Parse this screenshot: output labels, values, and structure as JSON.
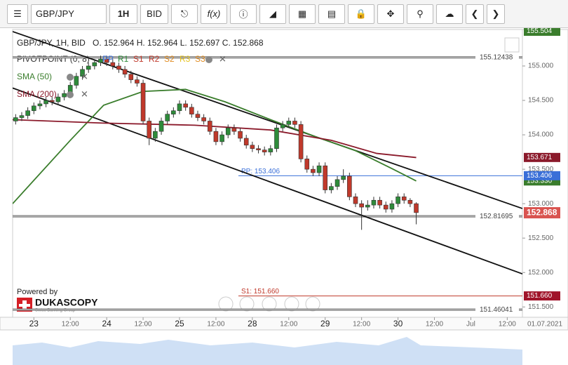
{
  "toolbar": {
    "symbol": "GBP/JPY",
    "timeframe": "1H",
    "side": "BID"
  },
  "chart_data": {
    "type": "candlestick",
    "title": "GBP/JPY, 1H, BID",
    "ohlc_summary": "O. 152.964 H. 152.964 L. 152.697 C. 152.868",
    "x": [
      1,
      3,
      5,
      7,
      9,
      11,
      13,
      15,
      17,
      19,
      21,
      23,
      25,
      27,
      29,
      31,
      33,
      35,
      37,
      39,
      41,
      43,
      45,
      47,
      49,
      51,
      53,
      55,
      57,
      59,
      61,
      63,
      65,
      67,
      69,
      71,
      73,
      75,
      77,
      79,
      81,
      83,
      85,
      87,
      89,
      91,
      93,
      95,
      97,
      99,
      101,
      103,
      105,
      107,
      109,
      111,
      113,
      115,
      117,
      119,
      121,
      123,
      125,
      127,
      129,
      131,
      133
    ],
    "open": [
      154.2,
      154.25,
      154.28,
      154.35,
      154.42,
      154.45,
      154.5,
      154.48,
      154.55,
      154.6,
      154.72,
      154.85,
      154.95,
      155.0,
      155.05,
      155.1,
      155.05,
      155.0,
      154.95,
      154.88,
      154.8,
      154.75,
      154.2,
      153.95,
      154.05,
      154.2,
      154.3,
      154.35,
      154.45,
      154.4,
      154.3,
      154.25,
      154.2,
      154.05,
      153.9,
      154.0,
      154.1,
      154.05,
      153.95,
      153.85,
      153.8,
      153.78,
      153.75,
      153.8,
      154.1,
      154.15,
      154.2,
      154.15,
      153.65,
      153.5,
      153.45,
      153.55,
      153.2,
      153.25,
      153.35,
      153.4,
      153.1,
      153.0,
      152.95,
      152.98,
      153.05,
      152.98,
      152.92,
      153.0,
      153.1,
      153.05,
      153.0
    ],
    "high": [
      154.3,
      154.33,
      154.4,
      154.47,
      154.5,
      154.55,
      154.55,
      154.6,
      154.65,
      154.77,
      154.9,
      155.0,
      155.05,
      155.1,
      155.15,
      155.15,
      155.1,
      155.05,
      155.0,
      154.93,
      154.85,
      154.8,
      154.25,
      154.1,
      154.25,
      154.35,
      154.4,
      154.5,
      154.5,
      154.45,
      154.35,
      154.3,
      154.25,
      154.1,
      154.05,
      154.15,
      154.15,
      154.1,
      154.0,
      153.9,
      153.85,
      153.83,
      153.85,
      154.15,
      154.2,
      154.25,
      154.25,
      154.2,
      153.7,
      153.55,
      153.6,
      153.6,
      153.3,
      153.4,
      153.5,
      153.45,
      153.15,
      153.05,
      153.05,
      153.1,
      153.1,
      153.03,
      153.05,
      153.15,
      153.15,
      153.08,
      153.02
    ],
    "low": [
      154.15,
      154.2,
      154.23,
      154.3,
      154.37,
      154.4,
      154.43,
      154.43,
      154.5,
      154.55,
      154.67,
      154.8,
      154.9,
      154.95,
      155.0,
      155.0,
      154.95,
      154.9,
      154.83,
      154.75,
      154.7,
      154.15,
      153.85,
      153.9,
      154.0,
      154.15,
      154.25,
      154.3,
      154.35,
      154.25,
      154.2,
      154.15,
      154.0,
      153.85,
      153.85,
      153.95,
      154.0,
      153.9,
      153.8,
      153.75,
      153.73,
      153.7,
      153.7,
      153.75,
      154.05,
      154.1,
      154.1,
      153.6,
      153.45,
      153.4,
      153.4,
      153.15,
      153.15,
      153.2,
      153.3,
      153.05,
      152.95,
      152.62,
      152.9,
      152.93,
      152.93,
      152.87,
      152.87,
      152.95,
      153.0,
      152.95,
      152.7
    ],
    "close": [
      154.25,
      154.28,
      154.35,
      154.42,
      154.45,
      154.5,
      154.48,
      154.55,
      154.6,
      154.72,
      154.85,
      154.95,
      155.0,
      155.05,
      155.1,
      155.05,
      155.0,
      154.95,
      154.88,
      154.8,
      154.75,
      154.2,
      153.95,
      154.05,
      154.2,
      154.3,
      154.35,
      154.45,
      154.4,
      154.3,
      154.25,
      154.2,
      154.05,
      153.9,
      154.0,
      154.1,
      154.05,
      153.95,
      153.85,
      153.8,
      153.78,
      153.75,
      153.8,
      154.1,
      154.15,
      154.2,
      154.15,
      153.65,
      153.5,
      153.45,
      153.55,
      153.2,
      153.25,
      153.35,
      153.4,
      153.1,
      153.0,
      152.95,
      152.98,
      153.05,
      152.98,
      152.92,
      153.0,
      153.1,
      153.05,
      153.0,
      152.87
    ],
    "up_color": "#2e8b3a",
    "down_color": "#c0392b",
    "xlim": [
      0,
      168
    ],
    "xticks": [
      {
        "value": 7,
        "label": "23"
      },
      {
        "value": 19,
        "label": "12:00"
      },
      {
        "value": 31,
        "label": "24"
      },
      {
        "value": 43,
        "label": "12:00"
      },
      {
        "value": 55,
        "label": "25"
      },
      {
        "value": 67,
        "label": "12:00"
      },
      {
        "value": 79,
        "label": "28"
      },
      {
        "value": 91,
        "label": "12:00"
      },
      {
        "value": 103,
        "label": "29"
      },
      {
        "value": 115,
        "label": "12:00"
      },
      {
        "value": 127,
        "label": "30"
      },
      {
        "value": 139,
        "label": "12:00"
      },
      {
        "value": 151,
        "label": "Jul"
      },
      {
        "value": 163,
        "label": "12:00"
      }
    ],
    "axis_date_label": "01.07.2021",
    "ylim": [
      151.35,
      155.53
    ],
    "yticks": [
      {
        "value": 155,
        "label": "155.000"
      },
      {
        "value": 154.5,
        "label": "154.500"
      },
      {
        "value": 154,
        "label": "154.000"
      },
      {
        "value": 153.5,
        "label": "153.500"
      },
      {
        "value": 153,
        "label": "153.000"
      },
      {
        "value": 152.5,
        "label": "152.500"
      },
      {
        "value": 152,
        "label": "152.000"
      },
      {
        "value": 151.5,
        "label": "151.500"
      }
    ],
    "indicators": [
      {
        "name": "SMA (50)",
        "color": "#3a7d2c",
        "x": [
          0,
          19,
          30,
          43,
          57,
          70,
          85,
          100,
          113,
          125,
          133
        ],
        "values": [
          153.0,
          153.92,
          154.43,
          154.63,
          154.66,
          154.48,
          154.22,
          153.97,
          153.77,
          153.51,
          153.33
        ]
      },
      {
        "name": "SMA (200)",
        "color": "#8b1a2b",
        "x": [
          0,
          30,
          60,
          85,
          105,
          120,
          133
        ],
        "values": [
          154.22,
          154.17,
          154.14,
          154.07,
          153.92,
          153.73,
          153.67
        ]
      }
    ],
    "pivot": {
      "name": "PIVOTPOINT (0, 8)",
      "levels": [
        {
          "name": "PP",
          "color": "#3a6fd8"
        },
        {
          "name": "R1",
          "color": "#2e8b3a"
        },
        {
          "name": "S1",
          "color": "#c0392b"
        },
        {
          "name": "R2",
          "color": "#c0392b"
        },
        {
          "name": "S2",
          "color": "#e08a1e"
        },
        {
          "name": "R3",
          "color": "#e6c21e"
        },
        {
          "name": "S3",
          "color": "#e08a1e"
        }
      ],
      "lines": [
        {
          "label": "PP: 153.406",
          "value": 153.406,
          "color": "#3a6fd8"
        },
        {
          "label": "S1: 151.660",
          "value": 151.66,
          "color": "#c0392b"
        }
      ]
    },
    "hlines": [
      {
        "value": 155.12438,
        "label": "155.12438"
      },
      {
        "value": 152.81695,
        "label": "152.81695"
      },
      {
        "value": 151.46041,
        "label": "151.46041"
      }
    ],
    "trendlines": [
      {
        "x": [
          0,
          168
        ],
        "values": [
          155.5,
          152.93
        ]
      },
      {
        "x": [
          0,
          168
        ],
        "values": [
          154.68,
          151.98
        ]
      }
    ],
    "price_markers": [
      {
        "value": 155.504,
        "label": "155.504",
        "color": "#3a7d2c"
      },
      {
        "value": 153.671,
        "label": "153.671",
        "color": "#8b1a2b"
      },
      {
        "value": 153.33,
        "label": "153.330",
        "color": "#3a7d2c"
      },
      {
        "value": 153.406,
        "label": "153.406",
        "color": "#3a6fd8"
      },
      {
        "value": 152.868,
        "label": "152.868",
        "color": "#d9534f"
      },
      {
        "value": 151.66,
        "label": "151.660",
        "color": "#a0142a"
      }
    ],
    "logo": {
      "powered": "Powered by",
      "brand": "DUKASCOPY",
      "tagline": "Swiss Banking Group"
    }
  }
}
